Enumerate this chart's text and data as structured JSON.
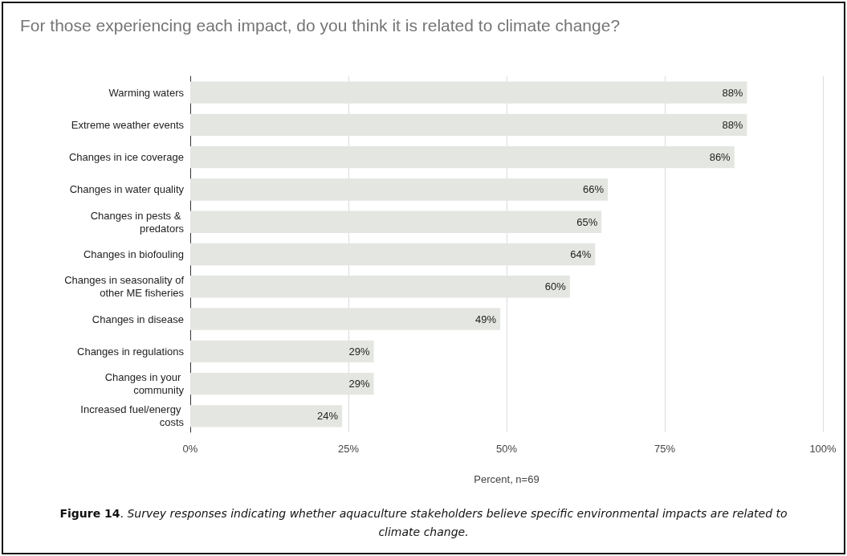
{
  "chart_data": {
    "type": "bar",
    "orientation": "horizontal",
    "title": "For those experiencing each impact, do you think it is related to climate change?",
    "categories": [
      "Warming waters",
      "Extreme weather events",
      "Changes in ice coverage",
      "Changes in water quality",
      "Changes in pests & predators",
      "Changes in biofouling",
      "Changes in seasonality of other ME fisheries",
      "Changes in disease",
      "Changes in regulations",
      "Changes in your community",
      "Increased fuel/energy costs"
    ],
    "values": [
      88,
      88,
      86,
      66,
      65,
      64,
      60,
      49,
      29,
      29,
      24
    ],
    "value_labels": [
      "88%",
      "88%",
      "86%",
      "66%",
      "65%",
      "64%",
      "60%",
      "49%",
      "29%",
      "29%",
      "24%"
    ],
    "color": "#e4e6e1",
    "xlim": [
      0,
      100
    ],
    "xticks": [
      {
        "value": 0,
        "label": "0%"
      },
      {
        "value": 25,
        "label": "25%"
      },
      {
        "value": 50,
        "label": "50%"
      },
      {
        "value": 75,
        "label": "75%"
      },
      {
        "value": 100,
        "label": "100%"
      }
    ],
    "xlabel": "Percent, n=69",
    "grid": "x",
    "annotations": [
      "Figure 14. Survey responses indicating whether aquaculture stakeholders believe specific environmental impacts are related to climate change."
    ]
  }
}
